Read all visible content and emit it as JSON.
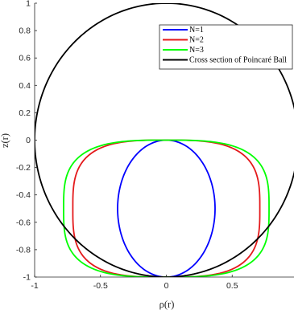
{
  "chart_data": {
    "type": "line",
    "xlabel": "ρ(r)",
    "ylabel": "z(r)",
    "xlim": [
      -1,
      1
    ],
    "ylim": [
      -1,
      1
    ],
    "xticks": [
      "-1",
      "-0.5",
      "0",
      "0.5"
    ],
    "yticks": [
      "1",
      "0.8",
      "0.6",
      "0.4",
      "0.2",
      "0",
      "-0.2",
      "-0.4",
      "-0.6",
      "-0.8",
      "-1"
    ],
    "grid": false,
    "legend_position": "top-right",
    "series": [
      {
        "name": "N=1",
        "color": "#0000ff",
        "shape": "circle",
        "x": [
          0,
          0.18,
          0.31,
          0.37,
          0.31,
          0.18,
          0,
          -0.18,
          -0.31,
          -0.37,
          -0.31,
          -0.18,
          0
        ],
        "y": [
          0,
          -0.04,
          -0.17,
          -0.47,
          -0.79,
          -0.93,
          -1,
          -0.93,
          -0.79,
          -0.47,
          -0.17,
          -0.04,
          0
        ]
      },
      {
        "name": "N=2",
        "color": "#e41a1c",
        "shape": "superellipse",
        "x": [
          0,
          0.3,
          0.57,
          0.68,
          0.71,
          0.69,
          0.6,
          0.42,
          0.2,
          0,
          -0.2,
          -0.42,
          -0.6,
          -0.69,
          -0.71,
          -0.68,
          -0.57,
          -0.3,
          0
        ],
        "y": [
          0,
          -0.01,
          -0.07,
          -0.2,
          -0.4,
          -0.6,
          -0.77,
          -0.9,
          -0.97,
          -1,
          -0.97,
          -0.9,
          -0.77,
          -0.6,
          -0.4,
          -0.2,
          -0.07,
          -0.01,
          0
        ]
      },
      {
        "name": "N=3",
        "color": "#00ff00",
        "shape": "superellipse",
        "x": [
          0,
          0.35,
          0.64,
          0.75,
          0.78,
          0.76,
          0.68,
          0.5,
          0.24,
          0,
          -0.24,
          -0.5,
          -0.68,
          -0.76,
          -0.78,
          -0.75,
          -0.64,
          -0.35,
          0
        ],
        "y": [
          0,
          -0.01,
          -0.06,
          -0.2,
          -0.4,
          -0.6,
          -0.76,
          -0.9,
          -0.97,
          -1,
          -0.97,
          -0.9,
          -0.76,
          -0.6,
          -0.4,
          -0.2,
          -0.06,
          -0.01,
          0
        ]
      },
      {
        "name": "Cross section of Poincaré Ball",
        "color": "#000000",
        "shape": "unit-circle",
        "x": [
          1,
          0.71,
          0,
          -0.71,
          -1,
          -0.71,
          0,
          0.71,
          1
        ],
        "y": [
          0,
          0.71,
          1,
          0.71,
          0,
          -0.71,
          -1,
          -0.71,
          0
        ]
      }
    ]
  }
}
